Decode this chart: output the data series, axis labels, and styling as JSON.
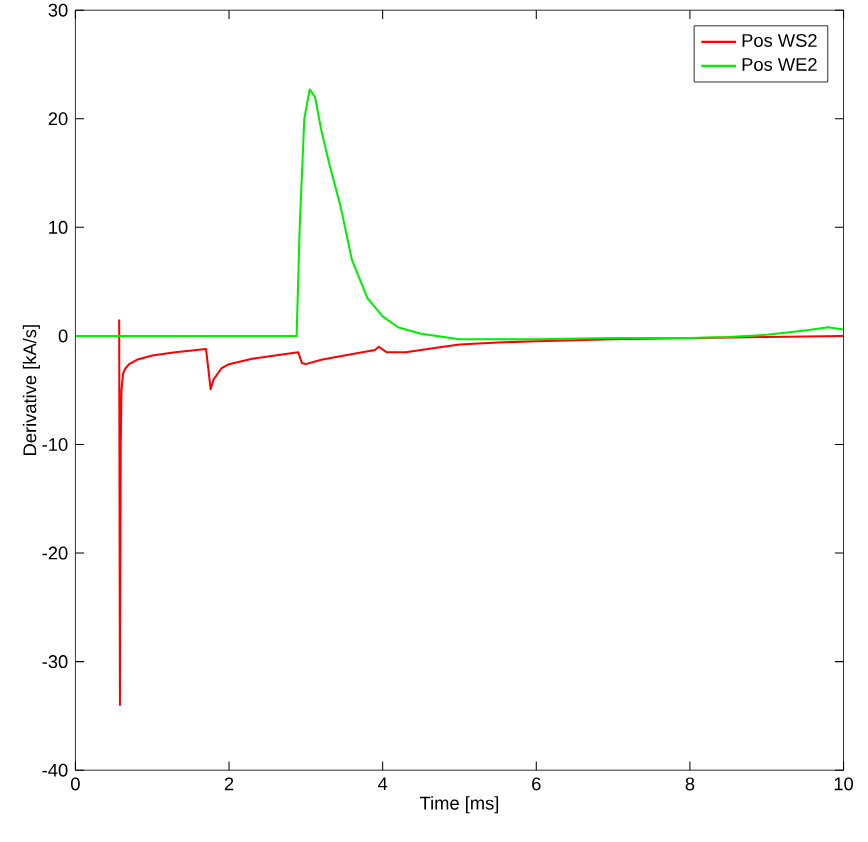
{
  "chart_data": {
    "type": "line",
    "xlabel": "Time [ms]",
    "ylabel": "Derivative [kA/s]",
    "xlim": [
      0,
      10
    ],
    "ylim": [
      -40,
      30
    ],
    "xticks": [
      0,
      2,
      4,
      6,
      8,
      10
    ],
    "yticks": [
      -40,
      -30,
      -20,
      -10,
      0,
      10,
      20,
      30
    ],
    "legend": "top right",
    "marker": "none",
    "line_style": "solid",
    "grid": false,
    "series": [
      {
        "name": "Pos WS2",
        "color": "#ff0000",
        "x": [
          0.57,
          0.58,
          0.59,
          0.6,
          0.62,
          0.65,
          0.7,
          0.8,
          1.0,
          1.3,
          1.7,
          1.73,
          1.76,
          1.8,
          1.9,
          2.0,
          2.3,
          2.6,
          2.9,
          2.95,
          3.0,
          3.2,
          3.5,
          3.9,
          3.95,
          4.05,
          4.3,
          4.7,
          5.0,
          5.5,
          6.0,
          7.0,
          9.0,
          10.0
        ],
        "values": [
          1.5,
          -34,
          -10,
          -5,
          -3.5,
          -3,
          -2.6,
          -2.2,
          -1.8,
          -1.5,
          -1.2,
          -3,
          -4.9,
          -4,
          -3,
          -2.6,
          -2.1,
          -1.8,
          -1.5,
          -2.5,
          -2.6,
          -2.2,
          -1.8,
          -1.3,
          -1.0,
          -1.5,
          -1.5,
          -1.1,
          -0.8,
          -0.6,
          -0.5,
          -0.3,
          -0.1,
          0
        ]
      },
      {
        "name": "Pos WE2",
        "color": "#00ee00",
        "x": [
          0,
          1,
          2,
          2.88,
          2.92,
          2.98,
          3.05,
          3.12,
          3.2,
          3.3,
          3.45,
          3.6,
          3.8,
          4.0,
          4.2,
          4.5,
          5.0,
          6.0,
          7.0,
          8.0,
          8.5,
          9.0,
          9.5,
          9.8,
          10.0
        ],
        "values": [
          0,
          0,
          0,
          0,
          10,
          20,
          22.7,
          22,
          19,
          16,
          12,
          7,
          3.5,
          1.8,
          0.8,
          0.2,
          -0.3,
          -0.3,
          -0.2,
          -0.2,
          -0.1,
          0.1,
          0.5,
          0.8,
          0.6
        ]
      }
    ]
  }
}
